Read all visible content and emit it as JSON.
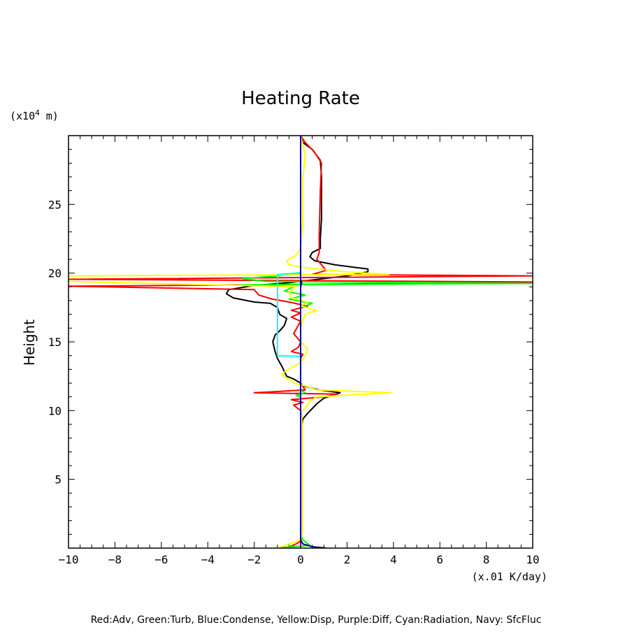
{
  "chart_data": {
    "type": "line",
    "title": "Heating Rate",
    "xunit": "(x.01 K/day)",
    "yunit_prefix": "(x10",
    "yunit_exp": "4",
    "yunit_suffix": " m)",
    "ylabel": "Height",
    "legend_text": "Red:Adv, Green:Turb, Blue:Condense, Yellow:Disp, Purple:Diff, Cyan:Radiation, Navy: SfcFluc",
    "xlim": [
      -10,
      10
    ],
    "ylim": [
      0,
      30
    ],
    "xticks": [
      -10,
      -8,
      -6,
      -4,
      -2,
      0,
      2,
      4,
      6,
      8,
      10
    ],
    "yticks": [
      5,
      10,
      15,
      20,
      25
    ],
    "series": [
      {
        "key": "total",
        "color": "#000000",
        "points": [
          [
            0.0,
            0.0
          ],
          [
            0.0,
            0.5
          ],
          [
            0.05,
            1.0
          ],
          [
            0.05,
            5.0
          ],
          [
            0.05,
            9.0
          ],
          [
            0.1,
            9.4
          ],
          [
            0.3,
            9.8
          ],
          [
            0.7,
            10.5
          ],
          [
            1.0,
            10.9
          ],
          [
            1.7,
            11.3
          ],
          [
            0.8,
            11.5
          ],
          [
            0.1,
            11.8
          ],
          [
            0.0,
            12.0
          ],
          [
            -0.3,
            12.3
          ],
          [
            -0.6,
            12.5
          ],
          [
            -0.8,
            13.2
          ],
          [
            -1.0,
            13.8
          ],
          [
            -1.1,
            14.3
          ],
          [
            -1.2,
            15.0
          ],
          [
            -1.1,
            15.5
          ],
          [
            -0.9,
            15.8
          ],
          [
            -0.7,
            16.2
          ],
          [
            -0.6,
            16.7
          ],
          [
            -0.9,
            17.0
          ],
          [
            -1.0,
            17.5
          ],
          [
            -1.3,
            17.8
          ],
          [
            -2.0,
            17.9
          ],
          [
            -2.9,
            18.2
          ],
          [
            -3.2,
            18.5
          ],
          [
            -3.1,
            18.8
          ],
          [
            -2.0,
            19.1
          ],
          [
            -0.5,
            19.3
          ],
          [
            1.0,
            19.6
          ],
          [
            2.0,
            19.8
          ],
          [
            2.9,
            20.1
          ],
          [
            2.9,
            20.3
          ],
          [
            1.5,
            20.6
          ],
          [
            0.6,
            20.9
          ],
          [
            0.4,
            21.2
          ],
          [
            0.5,
            21.5
          ],
          [
            0.85,
            21.8
          ],
          [
            0.85,
            22.5
          ],
          [
            0.9,
            24.0
          ],
          [
            0.9,
            27.0
          ],
          [
            0.85,
            28.2
          ],
          [
            0.5,
            29.0
          ],
          [
            0.1,
            29.5
          ],
          [
            0.0,
            30.0
          ]
        ]
      },
      {
        "key": "adv",
        "color": "#ff0000",
        "points": [
          [
            -0.6,
            0.0
          ],
          [
            -0.2,
            0.3
          ],
          [
            0.0,
            0.5
          ],
          [
            0.05,
            1.0
          ],
          [
            0.05,
            9.5
          ],
          [
            0.0,
            10.0
          ],
          [
            -0.3,
            10.4
          ],
          [
            0.1,
            10.6
          ],
          [
            -0.4,
            10.8
          ],
          [
            1.0,
            11.0
          ],
          [
            1.6,
            11.2
          ],
          [
            -2.0,
            11.3
          ],
          [
            0.2,
            11.5
          ],
          [
            0.0,
            12.0
          ],
          [
            0.0,
            13.8
          ],
          [
            0.1,
            14.1
          ],
          [
            -0.4,
            14.3
          ],
          [
            -0.1,
            14.6
          ],
          [
            0.0,
            15.0
          ],
          [
            -0.3,
            15.6
          ],
          [
            0.0,
            16.5
          ],
          [
            -0.4,
            16.8
          ],
          [
            0.0,
            17.1
          ],
          [
            -0.4,
            17.3
          ],
          [
            0.3,
            17.6
          ],
          [
            -0.5,
            17.9
          ],
          [
            -1.2,
            18.1
          ],
          [
            -1.8,
            18.4
          ],
          [
            -2.0,
            18.8
          ],
          [
            -10.0,
            19.05
          ],
          [
            -2.0,
            19.15
          ],
          [
            10.0,
            19.35
          ],
          [
            -10.0,
            19.55
          ],
          [
            10.0,
            19.8
          ],
          [
            0.5,
            19.9
          ],
          [
            1.1,
            20.2
          ],
          [
            0.9,
            20.6
          ],
          [
            0.7,
            21.0
          ],
          [
            0.8,
            21.5
          ],
          [
            0.8,
            23.0
          ],
          [
            0.85,
            26.0
          ],
          [
            0.9,
            28.0
          ],
          [
            0.6,
            28.8
          ],
          [
            0.2,
            29.5
          ],
          [
            0.0,
            30.0
          ]
        ]
      },
      {
        "key": "turb",
        "color": "#00ff00",
        "points": [
          [
            -1.1,
            0.0
          ],
          [
            0.4,
            0.2
          ],
          [
            0.1,
            0.6
          ],
          [
            0.0,
            1.0
          ],
          [
            0.0,
            11.0
          ],
          [
            -0.2,
            11.1
          ],
          [
            0.2,
            11.3
          ],
          [
            0.0,
            11.5
          ],
          [
            0.0,
            17.5
          ],
          [
            0.5,
            17.8
          ],
          [
            -0.5,
            18.1
          ],
          [
            0.2,
            18.4
          ],
          [
            -0.7,
            18.7
          ],
          [
            -0.3,
            19.0
          ],
          [
            -2.6,
            19.15
          ],
          [
            10.0,
            19.25
          ],
          [
            -1.5,
            19.4
          ],
          [
            -2.5,
            19.6
          ],
          [
            -1.0,
            19.8
          ],
          [
            0.0,
            20.0
          ],
          [
            0.0,
            30.0
          ]
        ]
      },
      {
        "key": "condense",
        "color": "#0000ff",
        "points": [
          [
            0.0,
            0.0
          ],
          [
            0.0,
            19.0
          ],
          [
            0.05,
            19.3
          ],
          [
            0.0,
            19.5
          ],
          [
            0.0,
            30.0
          ]
        ]
      },
      {
        "key": "disp",
        "color": "#ffff00",
        "points": [
          [
            -1.0,
            0.0
          ],
          [
            -0.5,
            0.3
          ],
          [
            0.0,
            0.6
          ],
          [
            0.05,
            1.0
          ],
          [
            0.05,
            9.5
          ],
          [
            0.0,
            9.9
          ],
          [
            0.2,
            10.2
          ],
          [
            0.4,
            10.7
          ],
          [
            0.7,
            11.0
          ],
          [
            3.9,
            11.3
          ],
          [
            0.7,
            11.5
          ],
          [
            0.2,
            11.8
          ],
          [
            -0.3,
            12.0
          ],
          [
            -0.4,
            12.2
          ],
          [
            -0.7,
            12.4
          ],
          [
            -0.8,
            12.7
          ],
          [
            -0.5,
            13.0
          ],
          [
            0.0,
            13.5
          ],
          [
            0.2,
            14.0
          ],
          [
            0.3,
            14.5
          ],
          [
            0.0,
            15.0
          ],
          [
            0.0,
            16.0
          ],
          [
            0.1,
            16.6
          ],
          [
            0.2,
            17.0
          ],
          [
            0.7,
            17.3
          ],
          [
            0.0,
            17.6
          ],
          [
            0.3,
            17.9
          ],
          [
            -0.4,
            18.2
          ],
          [
            -0.5,
            18.6
          ],
          [
            -0.2,
            19.0
          ],
          [
            -10.0,
            19.4
          ],
          [
            -10.0,
            19.8
          ],
          [
            3.8,
            19.9
          ],
          [
            1.9,
            20.1
          ],
          [
            0.2,
            20.4
          ],
          [
            -0.5,
            20.6
          ],
          [
            -0.6,
            20.9
          ],
          [
            -0.2,
            21.3
          ],
          [
            0.0,
            21.8
          ],
          [
            0.1,
            24.0
          ],
          [
            0.1,
            27.0
          ],
          [
            0.2,
            28.5
          ],
          [
            0.1,
            29.3
          ],
          [
            0.0,
            30.0
          ]
        ]
      },
      {
        "key": "diff",
        "color": "#800080",
        "points": [
          [
            0.0,
            0.0
          ],
          [
            0.0,
            30.0
          ]
        ]
      },
      {
        "key": "radiation",
        "color": "#00ffff",
        "points": [
          [
            0.0,
            13.95
          ],
          [
            -1.0,
            14.0
          ],
          [
            -1.0,
            19.9
          ],
          [
            -0.2,
            20.0
          ],
          [
            0.0,
            20.05
          ]
        ]
      },
      {
        "key": "sfcfluc",
        "color": "#000080",
        "points": [
          [
            1.1,
            0.0
          ],
          [
            0.5,
            0.1
          ],
          [
            0.1,
            0.3
          ],
          [
            0.0,
            0.6
          ],
          [
            0.0,
            30.0
          ]
        ]
      }
    ]
  }
}
